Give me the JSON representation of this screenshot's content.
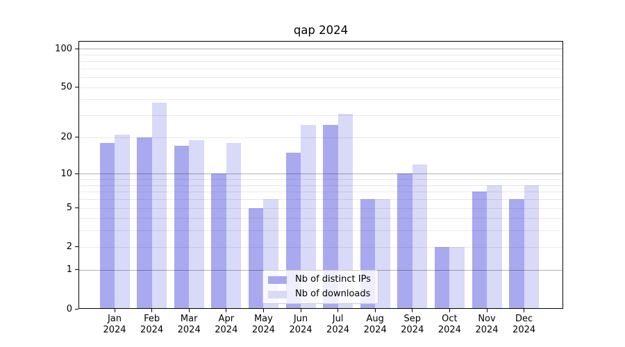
{
  "chart_data": {
    "type": "bar",
    "title": "qap 2024",
    "categories": [
      "Jan 2024",
      "Feb 2024",
      "Mar 2024",
      "Apr 2024",
      "May 2024",
      "Jun 2024",
      "Jul 2024",
      "Aug 2024",
      "Sep 2024",
      "Oct 2024",
      "Nov 2024",
      "Dec 2024"
    ],
    "series": [
      {
        "name": "Nb of distinct IPs",
        "color": "#a9a9f0",
        "values": [
          18,
          20,
          17,
          10,
          5,
          15,
          25,
          6,
          10,
          2,
          7,
          6
        ]
      },
      {
        "name": "Nb of downloads",
        "color": "#d9d9f8",
        "values": [
          21,
          38,
          19,
          18,
          6,
          25,
          31,
          6,
          12,
          2,
          8,
          8
        ]
      }
    ],
    "y_scale": "log1p",
    "ylim": [
      0,
      115
    ],
    "y_tick_values": [
      0,
      1,
      2,
      5,
      10,
      20,
      50,
      100
    ],
    "y_major_grid_values": [
      1,
      10,
      100
    ],
    "y_minor_grid_values": [
      2,
      3,
      4,
      5,
      6,
      7,
      8,
      9,
      20,
      30,
      40,
      50,
      60,
      70,
      80,
      90
    ],
    "grid": true,
    "legend_position": "lower center",
    "xlabel": "",
    "ylabel": ""
  },
  "colors": {
    "background": "#ffffff",
    "spine": "#000000",
    "text": "#000000",
    "major_grid": "#b2b2b2",
    "minor_grid": "#e9e9e9"
  }
}
